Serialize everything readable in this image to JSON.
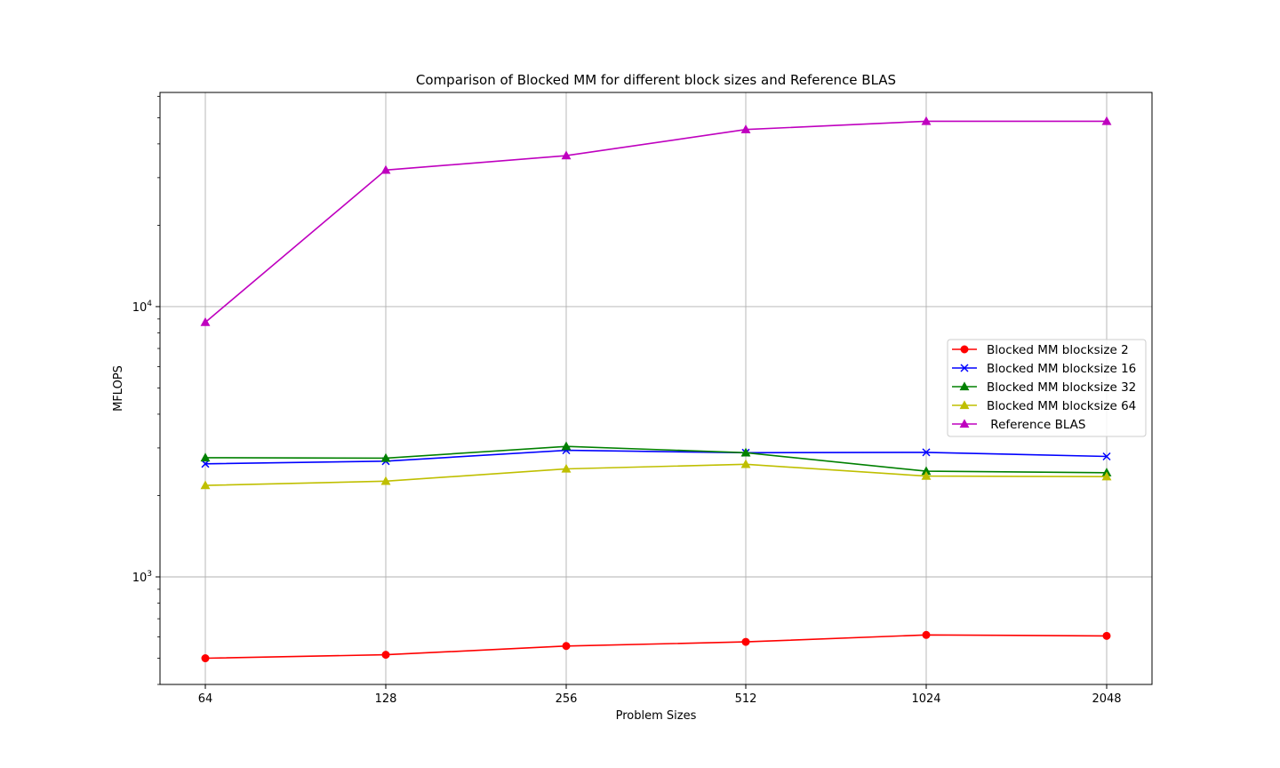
{
  "chart_data": {
    "type": "line",
    "title": "Comparison of Blocked MM for different block sizes and Reference BLAS",
    "xlabel": "Problem Sizes",
    "ylabel": "MFLOPS",
    "x": [
      64,
      128,
      256,
      512,
      1024,
      2048
    ],
    "x_tick_labels": [
      "64",
      "128",
      "256",
      "512",
      "1024",
      "2048"
    ],
    "y_scale": "log",
    "ylim": [
      400,
      62000
    ],
    "y_ticks": [
      {
        "value": 1000,
        "base": "10",
        "exp": "3"
      },
      {
        "value": 10000,
        "base": "10",
        "exp": "4"
      }
    ],
    "grid": true,
    "legend_position": "center-right",
    "series": [
      {
        "name": "Blocked MM blocksize 2",
        "color": "#ff0000",
        "marker": "circle",
        "values": [
          500,
          515,
          555,
          575,
          610,
          605
        ]
      },
      {
        "name": "Blocked MM blocksize 16",
        "color": "#0000ff",
        "marker": "x",
        "values": [
          2620,
          2680,
          2940,
          2880,
          2890,
          2790
        ]
      },
      {
        "name": "Blocked MM blocksize 32",
        "color": "#008000",
        "marker": "triangle",
        "values": [
          2760,
          2750,
          3040,
          2880,
          2460,
          2430
        ]
      },
      {
        "name": "Blocked MM blocksize 64",
        "color": "#bfbf00",
        "marker": "triangle",
        "values": [
          2180,
          2260,
          2510,
          2610,
          2360,
          2350
        ]
      },
      {
        "name": " Reference BLAS",
        "color": "#bf00bf",
        "marker": "triangle",
        "values": [
          8750,
          32000,
          36200,
          45200,
          48500,
          48500
        ]
      }
    ]
  }
}
